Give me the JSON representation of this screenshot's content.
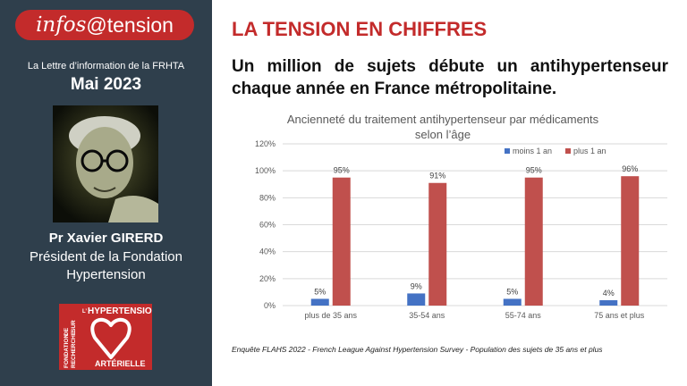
{
  "sidebar": {
    "logo_part1": "infos",
    "logo_part2": " @tension",
    "newsletter_label": "La Lettre d’information de la FRHTA",
    "issue_date": "Mai 2023",
    "author_name": "Pr Xavier GIRERD",
    "author_role_line1": "Président de la Fondation",
    "author_role_line2": "Hypertension",
    "foundation_logo": {
      "vertical_line1": "FONDATION",
      "vertical_line2": "DE",
      "vertical_line3": "RECHERCHE",
      "vertical_line4": "SUR",
      "top_text_prefix": "L’",
      "top_text": "HYPERTENSION",
      "bottom_text": "ARTÉRIELLE"
    }
  },
  "main": {
    "section_title": "LA TENSION EN CHIFFRES",
    "headline": "Un million de sujets débute un antihypertenseur chaque année en France métropolitaine.",
    "footnote": "Enquête FLAHS 2022 - French League Against Hypertension Survey - Population des sujets de 35 ans et plus"
  },
  "colors": {
    "brand_red": "#c32b2b",
    "sidebar_bg": "#2f3f4c",
    "series_blue": "#4472c4",
    "series_red": "#c0504d"
  },
  "chart_data": {
    "type": "bar",
    "title_line1": "Ancienneté du traitement antihypertenseur par médicaments",
    "title_line2": "selon l’âge",
    "categories": [
      "plus de 35 ans",
      "35-54 ans",
      "55-74 ans",
      "75 ans et plus"
    ],
    "series": [
      {
        "name": "moins 1 an",
        "values": [
          5,
          9,
          5,
          4
        ],
        "labels": [
          "5%",
          "9%",
          "5%",
          "4%"
        ],
        "color": "#4472c4"
      },
      {
        "name": "plus 1 an",
        "values": [
          95,
          91,
          95,
          96
        ],
        "labels": [
          "95%",
          "91%",
          "95%",
          "96%"
        ],
        "color": "#c0504d"
      }
    ],
    "y_ticks": [
      "0%",
      "20%",
      "40%",
      "60%",
      "80%",
      "100%",
      "120%"
    ],
    "ylim": [
      0,
      120
    ],
    "grid": true,
    "legend_position": "top-right"
  }
}
